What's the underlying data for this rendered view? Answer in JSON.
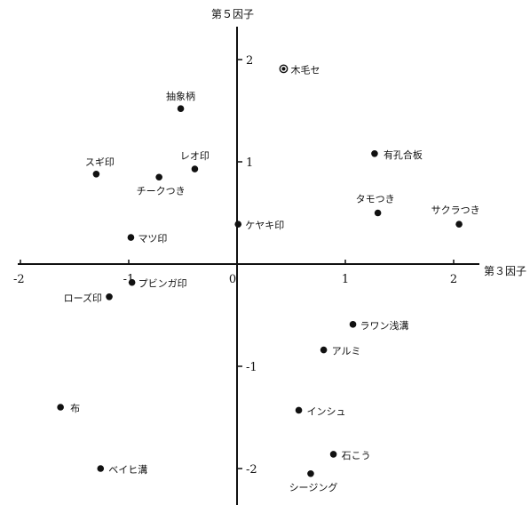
{
  "chart_data": {
    "type": "scatter",
    "title": "",
    "xlabel": "第３因子",
    "ylabel": "第５因子",
    "xlim": [
      -2.05,
      2.2
    ],
    "ylim": [
      -2.15,
      2.25
    ],
    "x_ticks": [
      {
        "value": -2,
        "label": "-2"
      },
      {
        "value": -1,
        "label": "-1"
      },
      {
        "value": 0,
        "label": "0"
      },
      {
        "value": 1,
        "label": "1"
      },
      {
        "value": 2,
        "label": "2"
      }
    ],
    "y_ticks": [
      {
        "value": 2,
        "label": "2"
      },
      {
        "value": 1,
        "label": "1"
      },
      {
        "value": -1,
        "label": "-1"
      },
      {
        "value": -2,
        "label": "-2"
      }
    ],
    "grid": false,
    "points": [
      {
        "label": "木毛セ",
        "x": 0.43,
        "y": 1.91,
        "style": "ringed"
      },
      {
        "label": "抽象柄",
        "x": -0.52,
        "y": 1.52
      },
      {
        "label": "有孔合板",
        "x": 1.27,
        "y": 1.08
      },
      {
        "label": "レオ印",
        "x": -0.39,
        "y": 0.93
      },
      {
        "label": "スギ印",
        "x": -1.3,
        "y": 0.88
      },
      {
        "label": "チークつき",
        "x": -0.72,
        "y": 0.85
      },
      {
        "label": "タモつき",
        "x": 1.3,
        "y": 0.5
      },
      {
        "label": "サクラつき",
        "x": 2.05,
        "y": 0.39
      },
      {
        "label": "ケヤキ印",
        "x": 0.01,
        "y": 0.39
      },
      {
        "label": "マツ印",
        "x": -0.98,
        "y": 0.26
      },
      {
        "label": "プビンガ印",
        "x": -0.97,
        "y": -0.18
      },
      {
        "label": "ローズ印",
        "x": -1.18,
        "y": -0.32
      },
      {
        "label": "ラワン浅溝",
        "x": 1.07,
        "y": -0.59
      },
      {
        "label": "アルミ",
        "x": 0.8,
        "y": -0.84
      },
      {
        "label": "布",
        "x": -1.63,
        "y": -1.4
      },
      {
        "label": "インシュ",
        "x": 0.57,
        "y": -1.43
      },
      {
        "label": "石こう",
        "x": 0.89,
        "y": -1.86
      },
      {
        "label": "シージング",
        "x": 0.68,
        "y": -2.05
      },
      {
        "label": "ベイヒ溝",
        "x": -1.26,
        "y": -2.0
      }
    ]
  }
}
